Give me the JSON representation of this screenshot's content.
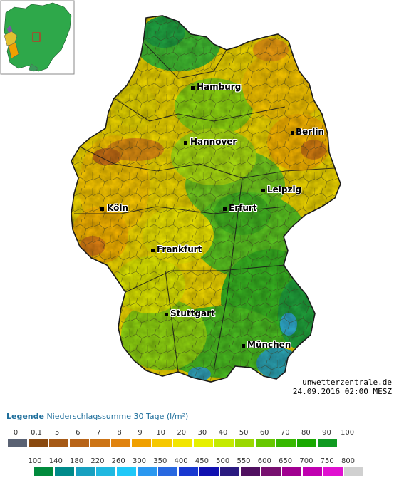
{
  "cities": [
    {
      "name": "Hamburg"
    },
    {
      "name": "Berlin"
    },
    {
      "name": "Hannover"
    },
    {
      "name": "Leipzig"
    },
    {
      "name": "Köln"
    },
    {
      "name": "Erfurt"
    },
    {
      "name": "Frankfurt"
    },
    {
      "name": "Stuttgart"
    },
    {
      "name": "München"
    }
  ],
  "credit": {
    "site": "unwetterzentrale.de",
    "datetime": "24.09.2016 02:00 MESZ"
  },
  "legend": {
    "title": "Legende",
    "subtitle": "Niederschlagssumme 30 Tage  (l/m²)",
    "scale1": {
      "labels": [
        "0",
        "0,1",
        "5",
        "6",
        "7",
        "8",
        "9",
        "10",
        "20",
        "30",
        "40",
        "50",
        "60",
        "70",
        "80",
        "90",
        "100"
      ],
      "colors": [
        "#5a6273",
        "#8a4a10",
        "#a65a16",
        "#b86418",
        "#cc7415",
        "#e0830f",
        "#f0a000",
        "#f6c800",
        "#f2e500",
        "#e6f000",
        "#c4ea00",
        "#9ad800",
        "#66c800",
        "#36b800",
        "#18a800",
        "#0f9a20"
      ]
    },
    "scale2": {
      "labels": [
        "100",
        "140",
        "180",
        "220",
        "260",
        "300",
        "350",
        "400",
        "450",
        "500",
        "550",
        "600",
        "650",
        "700",
        "750",
        "800"
      ],
      "colors": [
        "#008a3c",
        "#008a8a",
        "#17a0c0",
        "#20b8e0",
        "#20c8f8",
        "#2a98f0",
        "#2868e0",
        "#1838d0",
        "#1010b0",
        "#2a1a80",
        "#501060",
        "#781070",
        "#a00090",
        "#c000b0",
        "#e010d0",
        "#d0d0d0"
      ]
    }
  }
}
